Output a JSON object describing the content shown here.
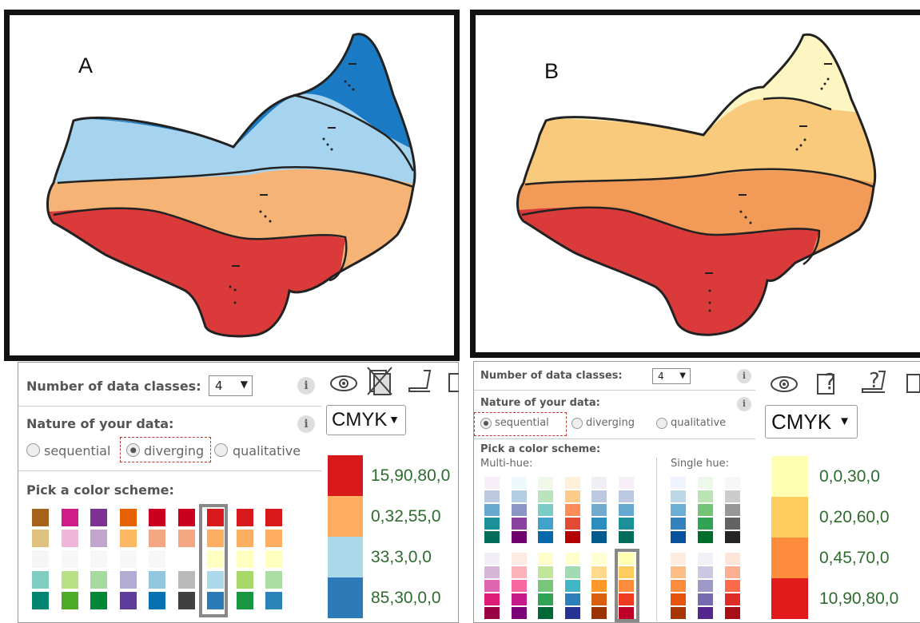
{
  "left": {
    "map_label": "A",
    "map_colors": {
      "top": "#1a7bc4",
      "mid": "#a6d4ee",
      "low": "#f6b376",
      "bottom": "#da3a3a"
    },
    "panel": {
      "classes_label": "Number of data classes:",
      "classes_value": "4",
      "nature_label": "Nature of your data:",
      "options": [
        "sequential",
        "diverging",
        "qualitative"
      ],
      "selected": "diverging",
      "scheme_label": "Pick a color scheme:"
    },
    "format": "CMYK",
    "legend": [
      {
        "color": "#d7191c",
        "value": "15,90,80,0"
      },
      {
        "color": "#fdae61",
        "value": "0,32,55,0"
      },
      {
        "color": "#abd9e9",
        "value": "33,3,0,0"
      },
      {
        "color": "#2c7bb6",
        "value": "85,30,0,0"
      }
    ]
  },
  "right": {
    "map_label": "B",
    "map_colors": {
      "top": "#fdf6c3",
      "mid": "#f9c97c",
      "low": "#f29a57",
      "bottom": "#da3a3a"
    },
    "panel": {
      "classes_label": "Number of data classes:",
      "classes_value": "4",
      "nature_label": "Nature of your data:",
      "options": [
        "sequential",
        "diverging",
        "qualitative"
      ],
      "selected": "sequential",
      "scheme_label": "Pick a color scheme:",
      "multi_hue_label": "Multi-hue:",
      "single_hue_label": "Single hue:"
    },
    "format": "CMYK",
    "legend": [
      {
        "color": "#ffffb2",
        "value": "0,0,30,0"
      },
      {
        "color": "#fecc5c",
        "value": "0,20,60,0"
      },
      {
        "color": "#fd8d3c",
        "value": "0,45,70,0"
      },
      {
        "color": "#e31a1c",
        "value": "10,90,80,0"
      }
    ]
  },
  "schemes_a": [
    [
      "#a6611a",
      "#dfc27d",
      "#f5f5f5",
      "#80cdc1",
      "#018571"
    ],
    [
      "#d01c8b",
      "#f1b6da",
      "#f7f7f7",
      "#b8e186",
      "#4dac26"
    ],
    [
      "#7b3294",
      "#c2a5cf",
      "#f7f7f7",
      "#a6dba0",
      "#008837"
    ],
    [
      "#e66101",
      "#fdb863",
      "#f7f7f7",
      "#b2abd2",
      "#5e3c99"
    ],
    [
      "#ca0020",
      "#f4a582",
      "#f7f7f7",
      "#92c5de",
      "#0571b0"
    ],
    [
      "#ca0020",
      "#f4a582",
      "#ffffff",
      "#bababa",
      "#404040"
    ],
    [
      "#d7191c",
      "#fdae61",
      "#ffffbf",
      "#abd9e9",
      "#2c7bb6"
    ],
    [
      "#d7191c",
      "#fdae61",
      "#ffffbf",
      "#a6d96a",
      "#1a9641"
    ],
    [
      "#d7191c",
      "#fdae61",
      "#ffffbf",
      "#abdda4",
      "#2b83ba"
    ]
  ],
  "schemes_b_row1": [
    [
      "#f6eff7",
      "#bdc9e1",
      "#67a9cf",
      "#1c9099",
      "#016c59"
    ],
    [
      "#edf8fb",
      "#b3cde3",
      "#8c96c6",
      "#88419d",
      "#6e016b"
    ],
    [
      "#f0f9e8",
      "#bae4bc",
      "#7bccc4",
      "#43a2ca",
      "#0868ac"
    ],
    [
      "#fef0d9",
      "#fdcc8a",
      "#fc8d59",
      "#e34a33",
      "#b30000"
    ],
    [
      "#f1eef6",
      "#bdc9e1",
      "#74a9cf",
      "#2b8cbe",
      "#045a8d"
    ],
    [
      "#f6eff7",
      "#bdc9e1",
      "#67a9cf",
      "#1c9099",
      "#016c59"
    ]
  ],
  "schemes_b_row2": [
    [
      "#f1eef6",
      "#d7b5d8",
      "#df65b0",
      "#dd1c77",
      "#980043"
    ],
    [
      "#feebe2",
      "#fbb4b9",
      "#f768a1",
      "#c51b8a",
      "#7a0177"
    ],
    [
      "#ffffcc",
      "#c2e699",
      "#78c679",
      "#31a354",
      "#006837"
    ],
    [
      "#ffffcc",
      "#a1dab4",
      "#41b6c4",
      "#2c7fb8",
      "#253494"
    ],
    [
      "#ffffd4",
      "#fed98e",
      "#fe9929",
      "#d95f0e",
      "#993404"
    ],
    [
      "#ffffb2",
      "#fecc5c",
      "#fd8d3c",
      "#f03b20",
      "#bd0026"
    ]
  ],
  "schemes_b_single_row1": [
    [
      "#eff3ff",
      "#bdd7e7",
      "#6baed6",
      "#3182bd",
      "#08519c"
    ],
    [
      "#edf8e9",
      "#bae4b3",
      "#74c476",
      "#31a354",
      "#006d2c"
    ],
    [
      "#f7f7f7",
      "#cccccc",
      "#969696",
      "#636363",
      "#252525"
    ]
  ],
  "schemes_b_single_row2": [
    [
      "#feedde",
      "#fdbe85",
      "#fd8d3c",
      "#e6550d",
      "#a63603"
    ],
    [
      "#f2f0f7",
      "#cbc9e2",
      "#9e9ac8",
      "#756bb1",
      "#54278f"
    ],
    [
      "#fee5d9",
      "#fcae91",
      "#fb6a4a",
      "#de2d26",
      "#a50f15"
    ]
  ]
}
